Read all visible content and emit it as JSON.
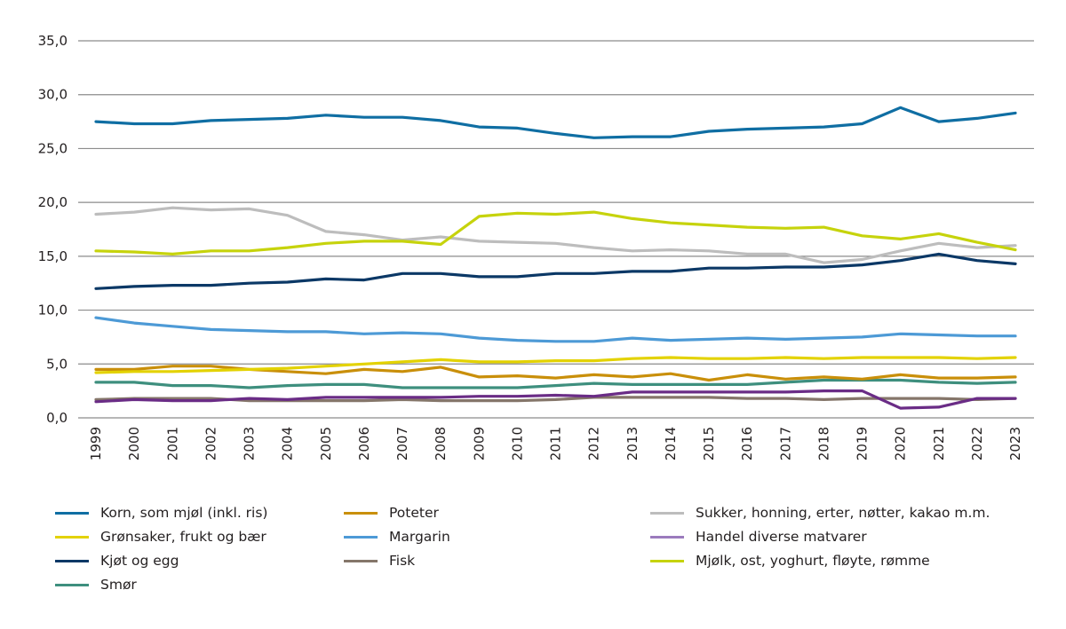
{
  "chart_data": {
    "type": "line",
    "title": "",
    "xlabel": "",
    "ylabel": "",
    "ylim": [
      0,
      35
    ],
    "yticks": [
      "0,0",
      "5,0",
      "10,0",
      "15,0",
      "20,0",
      "25,0",
      "30,0",
      "35,0"
    ],
    "ytick_values": [
      0,
      5,
      10,
      15,
      20,
      25,
      30,
      35
    ],
    "grid": true,
    "legend_position": "bottom",
    "x": [
      "1999",
      "2000",
      "2001",
      "2002",
      "2003",
      "2004",
      "2005",
      "2006",
      "2007",
      "2008",
      "2009",
      "2010",
      "2011",
      "2012",
      "2013",
      "2014",
      "2015",
      "2016",
      "2017",
      "2018",
      "2019",
      "2020",
      "2021",
      "2022",
      "2023"
    ],
    "series": [
      {
        "name": "Korn, som mjøl (inkl. ris)",
        "color": "#0f6ea3",
        "values": [
          27.5,
          27.3,
          27.3,
          27.6,
          27.7,
          27.8,
          28.1,
          27.9,
          27.9,
          27.6,
          27.0,
          26.9,
          26.4,
          26.0,
          26.1,
          26.1,
          26.6,
          26.8,
          26.9,
          27.0,
          27.3,
          28.8,
          27.5,
          27.8,
          28.3
        ]
      },
      {
        "name": "Grønsaker, frukt og bær",
        "color": "#e3d200",
        "values": [
          4.2,
          4.3,
          4.3,
          4.4,
          4.5,
          4.6,
          4.8,
          5.0,
          5.2,
          5.4,
          5.2,
          5.2,
          5.3,
          5.3,
          5.5,
          5.6,
          5.5,
          5.5,
          5.6,
          5.5,
          5.6,
          5.6,
          5.6,
          5.5,
          5.6
        ]
      },
      {
        "name": "Kjøt og egg",
        "color": "#0b3866",
        "values": [
          12.0,
          12.2,
          12.3,
          12.3,
          12.5,
          12.6,
          12.9,
          12.8,
          13.4,
          13.4,
          13.1,
          13.1,
          13.4,
          13.4,
          13.6,
          13.6,
          13.9,
          13.9,
          14.0,
          14.0,
          14.2,
          14.6,
          15.2,
          14.6,
          14.3
        ]
      },
      {
        "name": "Smør",
        "color": "#3e8f7e",
        "values": [
          3.3,
          3.3,
          3.0,
          3.0,
          2.8,
          3.0,
          3.1,
          3.1,
          2.8,
          2.8,
          2.8,
          2.8,
          3.0,
          3.2,
          3.1,
          3.1,
          3.1,
          3.1,
          3.3,
          3.5,
          3.5,
          3.5,
          3.3,
          3.2,
          3.3
        ]
      },
      {
        "name": "Poteter",
        "color": "#c98f0a",
        "values": [
          4.5,
          4.5,
          4.8,
          4.8,
          4.5,
          4.3,
          4.1,
          4.5,
          4.3,
          4.7,
          3.8,
          3.9,
          3.7,
          4.0,
          3.8,
          4.1,
          3.5,
          4.0,
          3.6,
          3.8,
          3.6,
          4.0,
          3.7,
          3.7,
          3.8
        ]
      },
      {
        "name": "Margarin",
        "color": "#4d9ad6",
        "values": [
          9.3,
          8.8,
          8.5,
          8.2,
          8.1,
          8.0,
          8.0,
          7.8,
          7.9,
          7.8,
          7.4,
          7.2,
          7.1,
          7.1,
          7.4,
          7.2,
          7.3,
          7.4,
          7.3,
          7.4,
          7.5,
          7.8,
          7.7,
          7.6,
          7.6
        ]
      },
      {
        "name": "Fisk",
        "color": "#85766a",
        "values": [
          1.7,
          1.8,
          1.8,
          1.8,
          1.6,
          1.6,
          1.6,
          1.6,
          1.7,
          1.6,
          1.6,
          1.6,
          1.7,
          1.9,
          1.9,
          1.9,
          1.9,
          1.8,
          1.8,
          1.7,
          1.8,
          1.8,
          1.8,
          1.7,
          1.8
        ]
      },
      {
        "name": "Sukker, honning, erter, nøtter, kakao m.m.",
        "color": "#bdbdbd",
        "values": [
          18.9,
          19.1,
          19.5,
          19.3,
          19.4,
          18.8,
          17.3,
          17.0,
          16.5,
          16.8,
          16.4,
          16.3,
          16.2,
          15.8,
          15.5,
          15.6,
          15.5,
          15.2,
          15.2,
          14.4,
          14.7,
          15.5,
          16.2,
          15.8,
          16.0
        ]
      },
      {
        "name": "Handel diverse matvarer",
        "color": "#6a2c86",
        "legend_color": "#9b7bbd",
        "values": [
          1.5,
          1.7,
          1.6,
          1.6,
          1.8,
          1.7,
          1.9,
          1.9,
          1.9,
          1.9,
          2.0,
          2.0,
          2.1,
          2.0,
          2.4,
          2.4,
          2.4,
          2.4,
          2.4,
          2.5,
          2.5,
          0.9,
          1.0,
          1.8,
          1.8
        ]
      },
      {
        "name": "Mjølk, ost, yoghurt, fløyte, rømme",
        "color": "#c6d30c",
        "values": [
          15.5,
          15.4,
          15.2,
          15.5,
          15.5,
          15.8,
          16.2,
          16.4,
          16.4,
          16.1,
          18.7,
          19.0,
          18.9,
          19.1,
          18.5,
          18.1,
          17.9,
          17.7,
          17.6,
          17.7,
          16.9,
          16.6,
          17.1,
          16.3,
          15.6
        ]
      }
    ],
    "draw_order": [
      3,
      6,
      8,
      4,
      1,
      5,
      2,
      7,
      9,
      0
    ],
    "legend_order": [
      0,
      4,
      7,
      1,
      5,
      8,
      2,
      6,
      9,
      3
    ]
  }
}
